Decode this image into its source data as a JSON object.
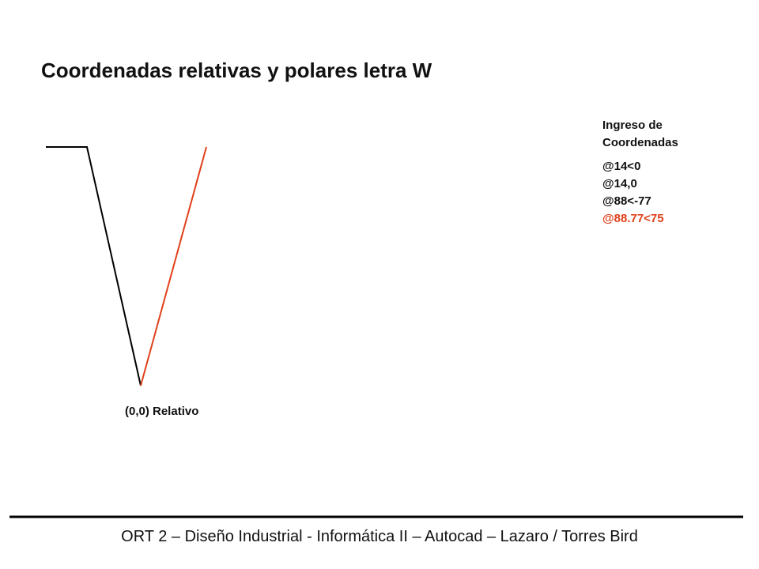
{
  "title": "Coordenadas relativas y polares letra W",
  "input_panel": {
    "heading": "Ingreso de Coordenadas",
    "commands": [
      "@14<0",
      "@14,0",
      "@88<-77"
    ],
    "current_command": "@88.77<75"
  },
  "origin_label": "(0,0) Relativo",
  "footer": "ORT 2 – Diseño Industrial - Informática II – Autocad – Lazaro / Torres Bird"
}
